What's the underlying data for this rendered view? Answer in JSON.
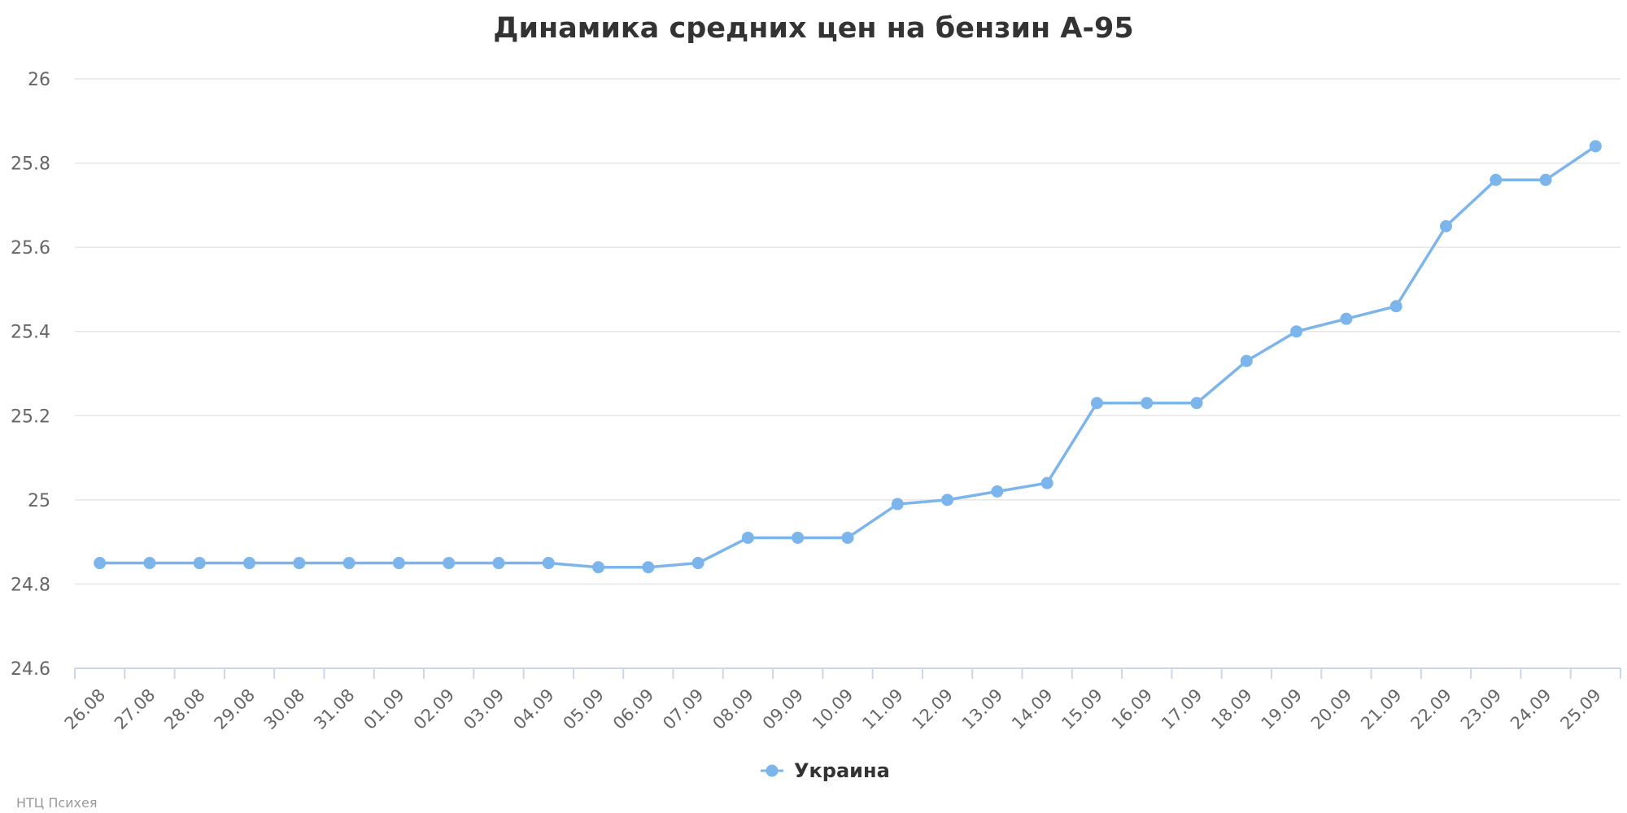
{
  "chart_data": {
    "type": "line",
    "title": "Динамика средних цен на бензин А-95",
    "xlabel": "",
    "ylabel": "",
    "categories": [
      "26.08",
      "27.08",
      "28.08",
      "29.08",
      "30.08",
      "31.08",
      "01.09",
      "02.09",
      "03.09",
      "04.09",
      "05.09",
      "06.09",
      "07.09",
      "08.09",
      "09.09",
      "10.09",
      "11.09",
      "12.09",
      "13.09",
      "14.09",
      "15.09",
      "16.09",
      "17.09",
      "18.09",
      "19.09",
      "20.09",
      "21.09",
      "22.09",
      "23.09",
      "24.09",
      "25.09"
    ],
    "yticks": [
      "24.6",
      "24.8",
      "25",
      "25.2",
      "25.4",
      "25.6",
      "25.8",
      "26"
    ],
    "ylim": [
      24.6,
      26
    ],
    "grid": true,
    "legend_position": "bottom-center",
    "series": [
      {
        "name": "Украина",
        "color": "#7cb5ec",
        "values": [
          24.85,
          24.85,
          24.85,
          24.85,
          24.85,
          24.85,
          24.85,
          24.85,
          24.85,
          24.85,
          24.84,
          24.84,
          24.85,
          24.91,
          24.91,
          24.91,
          24.99,
          25.0,
          25.02,
          25.04,
          25.23,
          25.23,
          25.23,
          25.33,
          25.4,
          25.43,
          25.46,
          25.65,
          25.76,
          25.76,
          25.84
        ]
      }
    ],
    "credit": "НТЦ Психея"
  }
}
